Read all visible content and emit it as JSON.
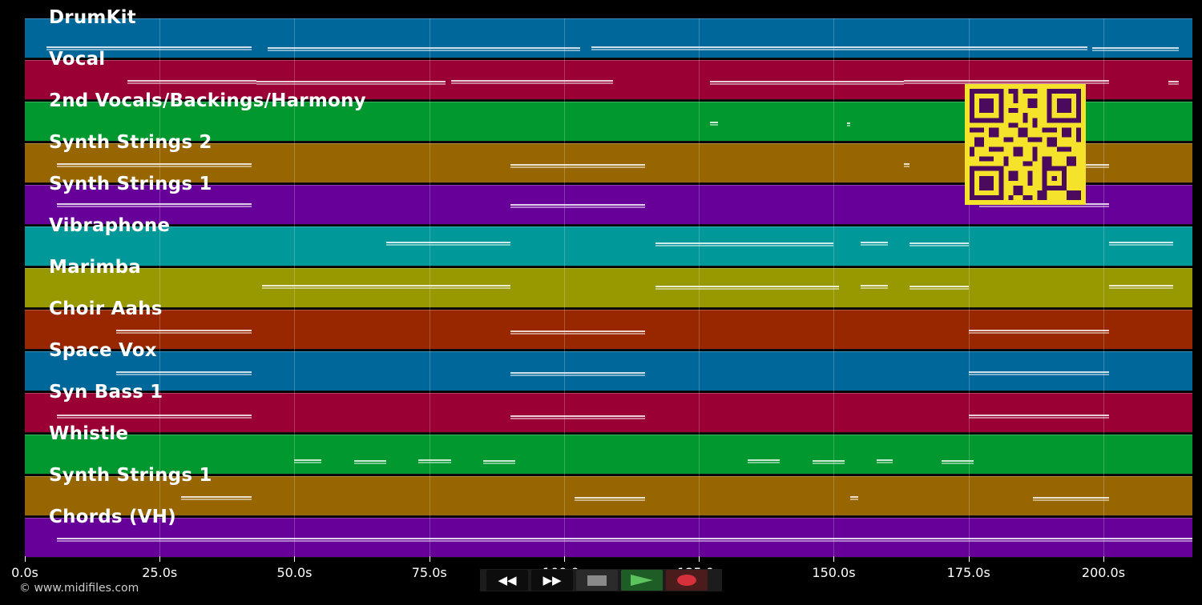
{
  "app": {
    "copyright": "© www.midifiles.com"
  },
  "timeline": {
    "start_s": 0,
    "end_s": 216.5,
    "ticks": [
      {
        "t": 0,
        "label": "0.0s"
      },
      {
        "t": 25,
        "label": "25.0s"
      },
      {
        "t": 50,
        "label": "50.0s"
      },
      {
        "t": 75,
        "label": "75.0s"
      },
      {
        "t": 100,
        "label": "100.0s"
      },
      {
        "t": 125,
        "label": "125.0s"
      },
      {
        "t": 150,
        "label": "150.0s"
      },
      {
        "t": 175,
        "label": "175.0s"
      },
      {
        "t": 200,
        "label": "200.0s"
      }
    ]
  },
  "tracks": [
    {
      "name": "DrumKit",
      "color": "#00679b",
      "notes": [
        [
          4,
          42
        ],
        [
          45,
          103
        ],
        [
          105,
          197
        ],
        [
          198,
          214
        ]
      ],
      "y": 34
    },
    {
      "name": "Vocal",
      "color": "#9a0034",
      "notes": [
        [
          19,
          43
        ],
        [
          43,
          78
        ],
        [
          79,
          109
        ],
        [
          127,
          163
        ],
        [
          163,
          201
        ],
        [
          212,
          214
        ]
      ],
      "y": 24
    },
    {
      "name": "2nd Vocals/Backings/Harmony",
      "color": "#00982f",
      "notes": [
        [
          127,
          128.5
        ],
        [
          152.5,
          153
        ]
      ],
      "y": 24
    },
    {
      "name": "Synth Strings 2",
      "color": "#986600",
      "notes": [
        [
          6,
          42
        ],
        [
          90,
          115
        ],
        [
          163,
          164
        ],
        [
          177,
          201
        ]
      ],
      "y": 24
    },
    {
      "name": "Synth Strings 1",
      "color": "#660099",
      "notes": [
        [
          6,
          42
        ],
        [
          90,
          115
        ],
        [
          177,
          201
        ]
      ],
      "y": 22
    },
    {
      "name": "Vibraphone",
      "color": "#009898",
      "notes": [
        [
          67,
          90
        ],
        [
          117,
          150
        ],
        [
          155,
          160
        ],
        [
          164,
          175
        ],
        [
          201,
          213
        ]
      ],
      "y": 18
    },
    {
      "name": "Marimba",
      "color": "#989800",
      "notes": [
        [
          44,
          90
        ],
        [
          117,
          151
        ],
        [
          155,
          160
        ],
        [
          164,
          175
        ],
        [
          201,
          213
        ]
      ],
      "y": 20
    },
    {
      "name": "Choir Aahs",
      "color": "#982700",
      "notes": [
        [
          17,
          42
        ],
        [
          90,
          115
        ],
        [
          175,
          201
        ]
      ],
      "y": 24
    },
    {
      "name": "Space Vox",
      "color": "#00679b",
      "notes": [
        [
          17,
          42
        ],
        [
          90,
          115
        ],
        [
          175,
          201
        ]
      ],
      "y": 24
    },
    {
      "name": "Syn Bass 1",
      "color": "#9a0034",
      "notes": [
        [
          6,
          42
        ],
        [
          90,
          115
        ],
        [
          175,
          201
        ]
      ],
      "y": 26
    },
    {
      "name": "Whistle",
      "color": "#00982f",
      "notes": [
        [
          50,
          55
        ],
        [
          61,
          67
        ],
        [
          73,
          79
        ],
        [
          85,
          91
        ],
        [
          134,
          140
        ],
        [
          146,
          152
        ],
        [
          158,
          161
        ],
        [
          170,
          176
        ]
      ],
      "y": 30
    },
    {
      "name": "Synth Strings 1",
      "color": "#986600",
      "notes": [
        [
          29,
          42
        ],
        [
          102,
          115
        ],
        [
          153,
          154.5
        ],
        [
          187,
          201
        ]
      ],
      "y": 24
    },
    {
      "name": "Chords (VH)",
      "color": "#660099",
      "notes": [
        [
          6,
          216.5
        ]
      ],
      "y": 24
    }
  ],
  "controls": {
    "rewind": "◀◀",
    "forward": "▶▶",
    "stop_color": "#8a8a8a",
    "play_color": "#5cc45c",
    "record_color": "#d6313a"
  }
}
